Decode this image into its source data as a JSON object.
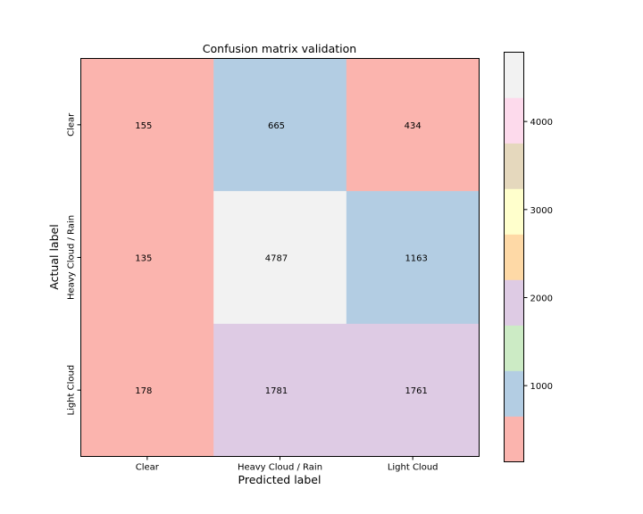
{
  "chart_data": {
    "type": "heatmap",
    "title": "Confusion matrix validation",
    "xlabel": "Predicted label",
    "ylabel": "Actual label",
    "x_categories": [
      "Clear",
      "Heavy Cloud / Rain",
      "Light Cloud"
    ],
    "y_categories": [
      "Clear",
      "Heavy Cloud / Rain",
      "Light Cloud"
    ],
    "values": [
      [
        155,
        665,
        434
      ],
      [
        135,
        4787,
        1163
      ],
      [
        178,
        1781,
        1761
      ]
    ],
    "colormap": "Pastel1",
    "colorbar": {
      "vmin": 135,
      "vmax": 4787,
      "ticks": [
        1000,
        2000,
        3000,
        4000
      ],
      "tick_labels": [
        "1000",
        "2000",
        "3000",
        "4000"
      ],
      "colors": [
        "#fbb4ae",
        "#b3cde3",
        "#ccebc5",
        "#decbe4",
        "#fed9a6",
        "#ffffcc",
        "#e5d8bd",
        "#fddaec",
        "#f2f2f2"
      ]
    },
    "grid": false
  }
}
